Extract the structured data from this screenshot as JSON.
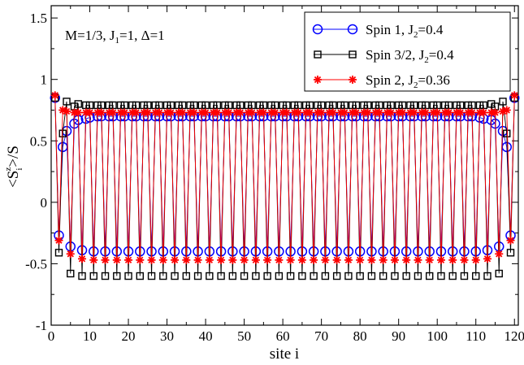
{
  "chart_data": {
    "type": "line",
    "xlabel": "site i",
    "ylabel": "<S_i^z>/S",
    "xlim": [
      0,
      121
    ],
    "ylim": [
      -1,
      1.6
    ],
    "xticks": [
      0,
      10,
      20,
      30,
      40,
      50,
      60,
      70,
      80,
      90,
      100,
      110,
      120
    ],
    "xtick_labels": [
      "0",
      "10",
      "20",
      "30",
      "40",
      "50",
      "60",
      "70",
      "80",
      "90",
      "100",
      "110",
      "120"
    ],
    "yticks": [
      -1,
      -0.5,
      0,
      0.5,
      1,
      1.5
    ],
    "ytick_labels": [
      "-1",
      "-0.5",
      "0",
      "0.5",
      "1",
      "1.5"
    ],
    "grid": false,
    "legend_position": "top-right",
    "annotation": {
      "M": "M=1/3, J",
      "J1sub": "1",
      "J1val": "=1, Δ=1"
    },
    "n_sites": 120,
    "series": [
      {
        "name": "Spin 1, J2=0.4",
        "legend_prefix": "Spin 1, J",
        "legend_sub": "2",
        "legend_suffix": "=0.4",
        "color": "#0000ff",
        "marker": "circle",
        "pattern": "period-3: two sites up (upper value), one site down (lower value); sites 1,2 / 3 repeating pattern up-down-up",
        "edge_up": [
          0.85,
          0.45,
          0.58,
          0.64,
          0.67,
          0.68,
          0.69
        ],
        "bulk_up": 0.7,
        "edge_down": [
          -0.27,
          -0.36,
          -0.39
        ],
        "bulk_down": -0.4
      },
      {
        "name": "Spin 3/2, J2=0.4",
        "legend_prefix": "Spin 3/2, J",
        "legend_sub": "2",
        "legend_suffix": "=0.4",
        "color": "#000000",
        "marker": "square",
        "edge_up": [
          0.85,
          0.56,
          0.82,
          0.78,
          0.8,
          0.79,
          0.79
        ],
        "bulk_up": 0.79,
        "edge_down": [
          -0.41,
          -0.58,
          -0.6
        ],
        "bulk_down": -0.6
      },
      {
        "name": "Spin 2, J2=0.36",
        "legend_prefix": "Spin 2, J",
        "legend_sub": "2",
        "legend_suffix": "=0.36",
        "color": "#ff0000",
        "marker": "star",
        "edge_up": [
          0.87,
          0.75,
          0.74,
          0.73,
          0.73,
          0.73,
          0.73
        ],
        "bulk_up": 0.73,
        "edge_down": [
          -0.31,
          -0.42,
          -0.46
        ],
        "bulk_down": -0.47
      }
    ]
  }
}
